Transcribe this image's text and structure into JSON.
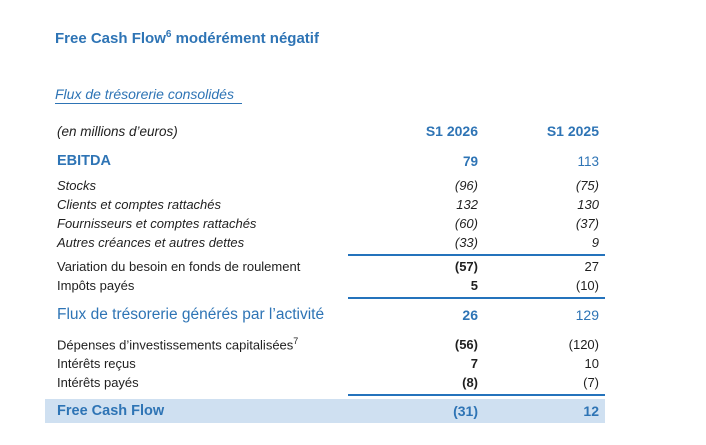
{
  "colors": {
    "accent_blue": "#2E74B5",
    "rule_blue": "#2473BC",
    "highlight_bg": "#CFE0F1",
    "text_black": "#1F1F1F"
  },
  "title": {
    "text": "Free Cash Flow",
    "superscript": "6",
    "suffix": " modérément négatif"
  },
  "subtitle": "Flux de trésorerie consolidés",
  "table": {
    "columns": [
      "(en millions d’euros)",
      "S1 2026",
      "S1 2025"
    ],
    "rows": [
      {
        "label": "(en millions d’euros)",
        "v1": "S1 2026",
        "v2": "S1 2025",
        "style": "header"
      },
      {
        "label": "EBITDA",
        "v1": "79",
        "v2": "113",
        "style": "ebitda"
      },
      {
        "label": "Stocks",
        "v1": "(96)",
        "v2": "(75)",
        "style": "sub"
      },
      {
        "label": "Clients et comptes rattachés",
        "v1": "132",
        "v2": "130",
        "style": "sub"
      },
      {
        "label": "Fournisseurs et comptes rattachés",
        "v1": "(60)",
        "v2": "(37)",
        "style": "sub"
      },
      {
        "label": "Autres créances et autres dettes",
        "v1": "(33)",
        "v2": "9",
        "style": "sub",
        "rule_after": true
      },
      {
        "label": "Variation du besoin en fonds de roulement",
        "v1": "(57)",
        "v2": "27",
        "style": "plain"
      },
      {
        "label": "Impôts payés",
        "v1": "5",
        "v2": "(10)",
        "style": "plain",
        "rule_after": true
      },
      {
        "label": "Flux de trésorerie générés par l’activité",
        "v1": "26",
        "v2": "129",
        "style": "subtotal"
      },
      {
        "label": "Dépenses d’investissements capitalisées",
        "label_sup": "7",
        "v1": "(56)",
        "v2": "(120)",
        "style": "plain",
        "group_start": true
      },
      {
        "label": "Intérêts reçus",
        "v1": "7",
        "v2": "10",
        "style": "plain"
      },
      {
        "label": "Intérêts payés",
        "v1": "(8)",
        "v2": "(7)",
        "style": "plain",
        "rule_after": true
      },
      {
        "label": "Free Cash Flow",
        "v1": "(31)",
        "v2": "12",
        "style": "total"
      }
    ]
  }
}
